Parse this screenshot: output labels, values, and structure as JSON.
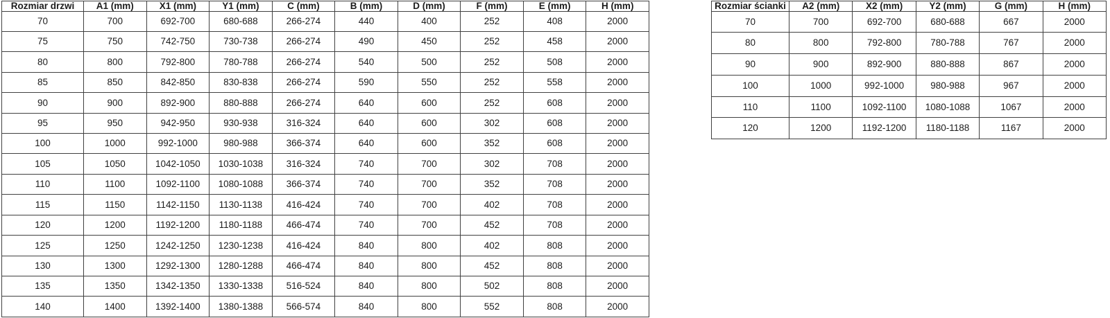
{
  "page": {
    "background_color": "#ffffff",
    "border_color": "#404040",
    "text_color": "#1c1c1c"
  },
  "door_table": {
    "headers": [
      "Rozmiar drzwi",
      "A1 (mm)",
      "X1 (mm)",
      "Y1 (mm)",
      "C (mm)",
      "B (mm)",
      "D (mm)",
      "F (mm)",
      "E (mm)",
      "H (mm)"
    ],
    "rows": [
      [
        "70",
        "700",
        "692-700",
        "680-688",
        "266-274",
        "440",
        "400",
        "252",
        "408",
        "2000"
      ],
      [
        "75",
        "750",
        "742-750",
        "730-738",
        "266-274",
        "490",
        "450",
        "252",
        "458",
        "2000"
      ],
      [
        "80",
        "800",
        "792-800",
        "780-788",
        "266-274",
        "540",
        "500",
        "252",
        "508",
        "2000"
      ],
      [
        "85",
        "850",
        "842-850",
        "830-838",
        "266-274",
        "590",
        "550",
        "252",
        "558",
        "2000"
      ],
      [
        "90",
        "900",
        "892-900",
        "880-888",
        "266-274",
        "640",
        "600",
        "252",
        "608",
        "2000"
      ],
      [
        "95",
        "950",
        "942-950",
        "930-938",
        "316-324",
        "640",
        "600",
        "302",
        "608",
        "2000"
      ],
      [
        "100",
        "1000",
        "992-1000",
        "980-988",
        "366-374",
        "640",
        "600",
        "352",
        "608",
        "2000"
      ],
      [
        "105",
        "1050",
        "1042-1050",
        "1030-1038",
        "316-324",
        "740",
        "700",
        "302",
        "708",
        "2000"
      ],
      [
        "110",
        "1100",
        "1092-1100",
        "1080-1088",
        "366-374",
        "740",
        "700",
        "352",
        "708",
        "2000"
      ],
      [
        "115",
        "1150",
        "1142-1150",
        "1130-1138",
        "416-424",
        "740",
        "700",
        "402",
        "708",
        "2000"
      ],
      [
        "120",
        "1200",
        "1192-1200",
        "1180-1188",
        "466-474",
        "740",
        "700",
        "452",
        "708",
        "2000"
      ],
      [
        "125",
        "1250",
        "1242-1250",
        "1230-1238",
        "416-424",
        "840",
        "800",
        "402",
        "808",
        "2000"
      ],
      [
        "130",
        "1300",
        "1292-1300",
        "1280-1288",
        "466-474",
        "840",
        "800",
        "452",
        "808",
        "2000"
      ],
      [
        "135",
        "1350",
        "1342-1350",
        "1330-1338",
        "516-524",
        "840",
        "800",
        "502",
        "808",
        "2000"
      ],
      [
        "140",
        "1400",
        "1392-1400",
        "1380-1388",
        "566-574",
        "840",
        "800",
        "552",
        "808",
        "2000"
      ]
    ]
  },
  "wall_table": {
    "headers": [
      "Rozmiar ścianki",
      "A2 (mm)",
      "X2 (mm)",
      "Y2 (mm)",
      "G (mm)",
      "H (mm)"
    ],
    "rows": [
      [
        "70",
        "700",
        "692-700",
        "680-688",
        "667",
        "2000"
      ],
      [
        "80",
        "800",
        "792-800",
        "780-788",
        "767",
        "2000"
      ],
      [
        "90",
        "900",
        "892-900",
        "880-888",
        "867",
        "2000"
      ],
      [
        "100",
        "1000",
        "992-1000",
        "980-988",
        "967",
        "2000"
      ],
      [
        "110",
        "1100",
        "1092-1100",
        "1080-1088",
        "1067",
        "2000"
      ],
      [
        "120",
        "1200",
        "1192-1200",
        "1180-1188",
        "1167",
        "2000"
      ]
    ]
  }
}
